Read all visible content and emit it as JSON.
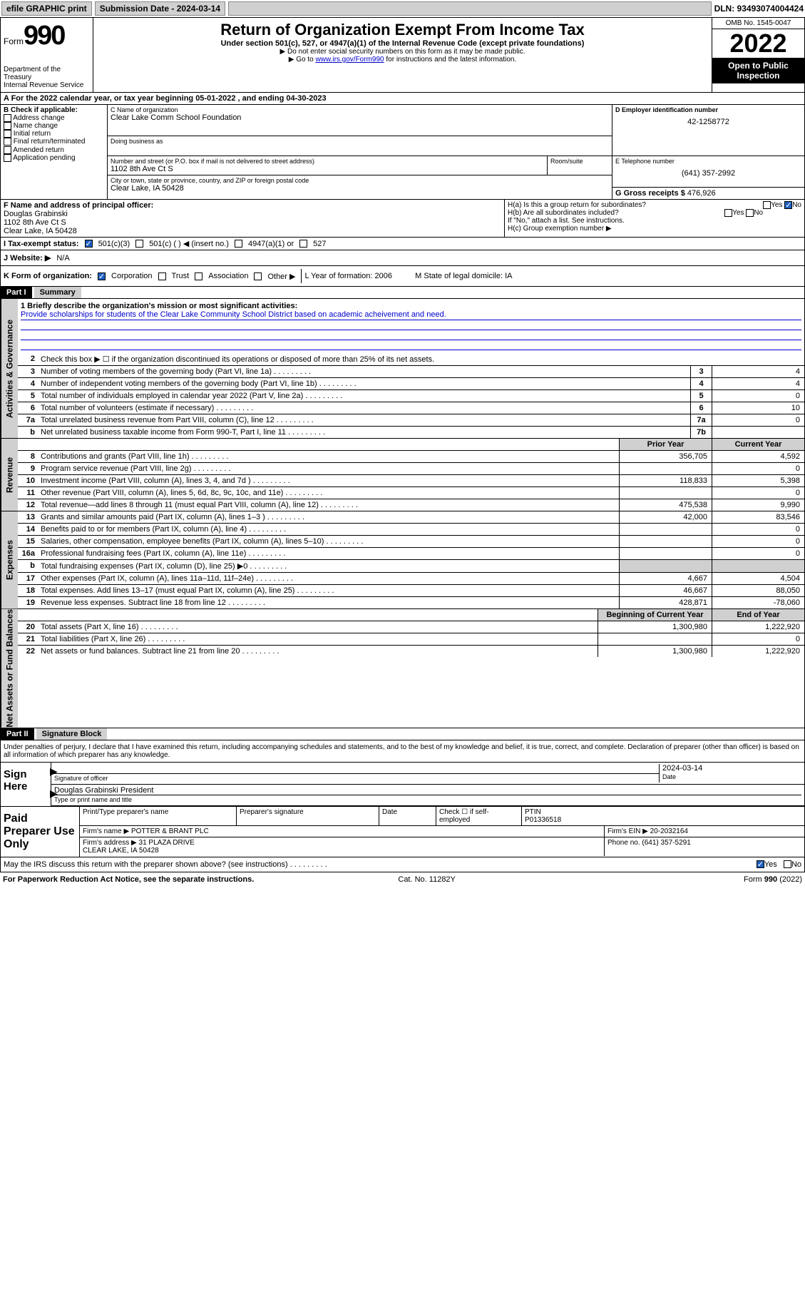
{
  "topbar": {
    "efile": "efile GRAPHIC print",
    "sub_label": "Submission Date - ",
    "sub_date": "2024-03-14",
    "dln": "DLN: 93493074004424"
  },
  "header": {
    "form_word": "Form",
    "form_num": "990",
    "dept": "Department of the Treasury",
    "irs": "Internal Revenue Service",
    "title": "Return of Organization Exempt From Income Tax",
    "sub": "Under section 501(c), 527, or 4947(a)(1) of the Internal Revenue Code (except private foundations)",
    "inst1": "▶ Do not enter social security numbers on this form as it may be made public.",
    "inst2_pre": "▶ Go to ",
    "inst2_link": "www.irs.gov/Form990",
    "inst2_post": " for instructions and the latest information.",
    "omb": "OMB No. 1545-0047",
    "year": "2022",
    "open": "Open to Public Inspection"
  },
  "row_a": "A For the 2022 calendar year, or tax year beginning 05-01-2022   , and ending 04-30-2023",
  "box_b": {
    "title": "B Check if applicable:",
    "items": [
      "Address change",
      "Name change",
      "Initial return",
      "Final return/terminated",
      "Amended return",
      "Application pending"
    ]
  },
  "box_c": {
    "name_lbl": "C Name of organization",
    "name": "Clear Lake Comm School Foundation",
    "dba_lbl": "Doing business as",
    "dba": "",
    "street_lbl": "Number and street (or P.O. box if mail is not delivered to street address)",
    "street": "1102 8th Ave Ct S",
    "room_lbl": "Room/suite",
    "city_lbl": "City or town, state or province, country, and ZIP or foreign postal code",
    "city": "Clear Lake, IA  50428"
  },
  "box_d": {
    "ein_lbl": "D Employer identification number",
    "ein": "42-1258772",
    "phone_lbl": "E Telephone number",
    "phone": "(641) 357-2992",
    "gross_lbl": "G Gross receipts $ ",
    "gross": "476,926"
  },
  "box_f": {
    "lbl": "F Name and address of principal officer:",
    "name": "Douglas Grabinski",
    "addr1": "1102 8th Ave Ct S",
    "addr2": "Clear Lake, IA  50428"
  },
  "box_h": {
    "a": "H(a)  Is this a group return for subordinates?",
    "b": "H(b)  Are all subordinates included?",
    "note": "If \"No,\" attach a list. See instructions.",
    "c": "H(c)  Group exemption number ▶",
    "yes": "Yes",
    "no": "No"
  },
  "status": {
    "lbl": "I   Tax-exempt status:",
    "opts": [
      "501(c)(3)",
      "501(c) (  ) ◀ (insert no.)",
      "4947(a)(1) or",
      "527"
    ]
  },
  "website": {
    "lbl": "J  Website: ▶",
    "val": "N/A"
  },
  "k_row": {
    "lbl": "K Form of organization:",
    "opts": [
      "Corporation",
      "Trust",
      "Association",
      "Other ▶"
    ],
    "l": "L Year of formation: 2006",
    "m": "M State of legal domicile: IA"
  },
  "part1": {
    "hdr": "Part I",
    "title": "Summary",
    "vtab_ag": "Activities & Governance",
    "vtab_rev": "Revenue",
    "vtab_exp": "Expenses",
    "vtab_na": "Net Assets or Fund Balances",
    "mission_lbl": "1   Briefly describe the organization's mission or most significant activities:",
    "mission": "Provide scholarships for students of the Clear Lake Community School District based on academic acheivement and need.",
    "l2": "Check this box ▶ ☐  if the organization discontinued its operations or disposed of more than 25% of its net assets.",
    "lines_ag": [
      {
        "n": "3",
        "t": "Number of voting members of the governing body (Part VI, line 1a)",
        "b": "3",
        "v": "4"
      },
      {
        "n": "4",
        "t": "Number of independent voting members of the governing body (Part VI, line 1b)",
        "b": "4",
        "v": "4"
      },
      {
        "n": "5",
        "t": "Total number of individuals employed in calendar year 2022 (Part V, line 2a)",
        "b": "5",
        "v": "0"
      },
      {
        "n": "6",
        "t": "Total number of volunteers (estimate if necessary)",
        "b": "6",
        "v": "10"
      },
      {
        "n": "7a",
        "t": "Total unrelated business revenue from Part VIII, column (C), line 12",
        "b": "7a",
        "v": "0"
      },
      {
        "n": "b",
        "t": "Net unrelated business taxable income from Form 990-T, Part I, line 11",
        "b": "7b",
        "v": ""
      }
    ],
    "hdr_prior": "Prior Year",
    "hdr_curr": "Current Year",
    "lines_rev": [
      {
        "n": "8",
        "t": "Contributions and grants (Part VIII, line 1h)",
        "p": "356,705",
        "c": "4,592"
      },
      {
        "n": "9",
        "t": "Program service revenue (Part VIII, line 2g)",
        "p": "",
        "c": "0"
      },
      {
        "n": "10",
        "t": "Investment income (Part VIII, column (A), lines 3, 4, and 7d )",
        "p": "118,833",
        "c": "5,398"
      },
      {
        "n": "11",
        "t": "Other revenue (Part VIII, column (A), lines 5, 6d, 8c, 9c, 10c, and 11e)",
        "p": "",
        "c": "0"
      },
      {
        "n": "12",
        "t": "Total revenue—add lines 8 through 11 (must equal Part VIII, column (A), line 12)",
        "p": "475,538",
        "c": "9,990"
      }
    ],
    "lines_exp": [
      {
        "n": "13",
        "t": "Grants and similar amounts paid (Part IX, column (A), lines 1–3 )",
        "p": "42,000",
        "c": "83,546"
      },
      {
        "n": "14",
        "t": "Benefits paid to or for members (Part IX, column (A), line 4)",
        "p": "",
        "c": "0"
      },
      {
        "n": "15",
        "t": "Salaries, other compensation, employee benefits (Part IX, column (A), lines 5–10)",
        "p": "",
        "c": "0"
      },
      {
        "n": "16a",
        "t": "Professional fundraising fees (Part IX, column (A), line 11e)",
        "p": "",
        "c": "0"
      },
      {
        "n": "b",
        "t": "Total fundraising expenses (Part IX, column (D), line 25) ▶0",
        "p": "shade",
        "c": "shade"
      },
      {
        "n": "17",
        "t": "Other expenses (Part IX, column (A), lines 11a–11d, 11f–24e)",
        "p": "4,667",
        "c": "4,504"
      },
      {
        "n": "18",
        "t": "Total expenses. Add lines 13–17 (must equal Part IX, column (A), line 25)",
        "p": "46,667",
        "c": "88,050"
      },
      {
        "n": "19",
        "t": "Revenue less expenses. Subtract line 18 from line 12",
        "p": "428,871",
        "c": "-78,060"
      }
    ],
    "hdr_beg": "Beginning of Current Year",
    "hdr_end": "End of Year",
    "lines_na": [
      {
        "n": "20",
        "t": "Total assets (Part X, line 16)",
        "p": "1,300,980",
        "c": "1,222,920"
      },
      {
        "n": "21",
        "t": "Total liabilities (Part X, line 26)",
        "p": "",
        "c": "0"
      },
      {
        "n": "22",
        "t": "Net assets or fund balances. Subtract line 21 from line 20",
        "p": "1,300,980",
        "c": "1,222,920"
      }
    ]
  },
  "part2": {
    "hdr": "Part II",
    "title": "Signature Block",
    "decl": "Under penalties of perjury, I declare that I have examined this return, including accompanying schedules and statements, and to the best of my knowledge and belief, it is true, correct, and complete. Declaration of preparer (other than officer) is based on all information of which preparer has any knowledge.",
    "sign_here": "Sign Here",
    "sig_lbl": "Signature of officer",
    "date_lbl": "Date",
    "date": "2024-03-14",
    "name": "Douglas Grabinski  President",
    "name_lbl": "Type or print name and title",
    "paid": "Paid Preparer Use Only",
    "prep_name_lbl": "Print/Type preparer's name",
    "prep_sig_lbl": "Preparer's signature",
    "prep_date_lbl": "Date",
    "check_lbl": "Check ☐ if self-employed",
    "ptin_lbl": "PTIN",
    "ptin": "P01336518",
    "firm_name_lbl": "Firm's name    ▶",
    "firm_name": "POTTER & BRANT PLC",
    "firm_ein_lbl": "Firm's EIN ▶",
    "firm_ein": "20-2032164",
    "firm_addr_lbl": "Firm's address ▶",
    "firm_addr1": "31 PLAZA DRIVE",
    "firm_addr2": "CLEAR LAKE, IA  50428",
    "firm_phone_lbl": "Phone no.",
    "firm_phone": "(641) 357-5291",
    "may_irs": "May the IRS discuss this return with the preparer shown above? (see instructions)"
  },
  "footer": {
    "left": "For Paperwork Reduction Act Notice, see the separate instructions.",
    "mid": "Cat. No. 11282Y",
    "right": "Form 990 (2022)"
  }
}
